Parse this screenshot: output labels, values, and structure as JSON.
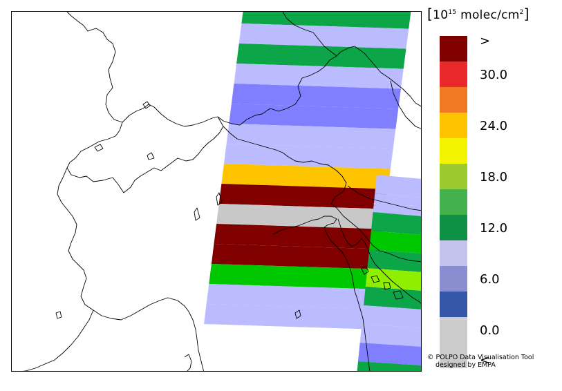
{
  "legend": {
    "unit_prefix": "10",
    "unit_exponent": "15",
    "unit_body": " molec/cm",
    "unit_suffix": "2",
    "bins": [
      {
        "color": "#800000",
        "label": ">"
      },
      {
        "color": "#e8282a",
        "label": "30.0"
      },
      {
        "color": "#f07a23",
        "label": ""
      },
      {
        "color": "#ffc400",
        "label": "24.0"
      },
      {
        "color": "#f4f400",
        "label": ""
      },
      {
        "color": "#9ccb30",
        "label": "18.0"
      },
      {
        "color": "#44b24c",
        "label": ""
      },
      {
        "color": "#0f9145",
        "label": "12.0"
      },
      {
        "color": "#c3c3ee",
        "label": ""
      },
      {
        "color": "#8a8ed0",
        "label": "6.0"
      },
      {
        "color": "#3656a8",
        "label": ""
      },
      {
        "color": "#cccccc",
        "label": "0.0"
      },
      {
        "color": "#cccccc",
        "label": "<"
      }
    ]
  },
  "credit": {
    "line1": "© POLPO Data Visualisation Tool",
    "line2": "designed by EMPA"
  },
  "map": {
    "swath_rows": [
      {
        "color": "#0ca548"
      },
      {
        "color": "#bbbbff"
      },
      {
        "color": "#0ca548"
      },
      {
        "color": "#bbbbff"
      },
      {
        "color": "#7f7fff"
      },
      {
        "color": "#7f7fff"
      },
      {
        "color": "#bbbbff"
      },
      {
        "color": "#bbbbff"
      },
      {
        "color": "#ffc400"
      },
      {
        "color": "#800000"
      },
      {
        "color": "#c8c8c8"
      },
      {
        "color": "#800000"
      },
      {
        "color": "#800000"
      },
      {
        "color": "#00c800"
      },
      {
        "color": "#bbbbff"
      },
      {
        "color": "#bbbbff"
      }
    ],
    "east_rows": [
      {
        "color": "#bbbbff"
      },
      {
        "color": "#bbbbff"
      },
      {
        "color": "#0ca548"
      },
      {
        "color": "#00c800"
      },
      {
        "color": "#0ca548"
      },
      {
        "color": "#90ee00"
      },
      {
        "color": "#0ca548"
      },
      {
        "color": "#bbbbff"
      },
      {
        "color": "#bbbbff"
      },
      {
        "color": "#7f7fff"
      },
      {
        "color": "#0ca548"
      }
    ]
  }
}
